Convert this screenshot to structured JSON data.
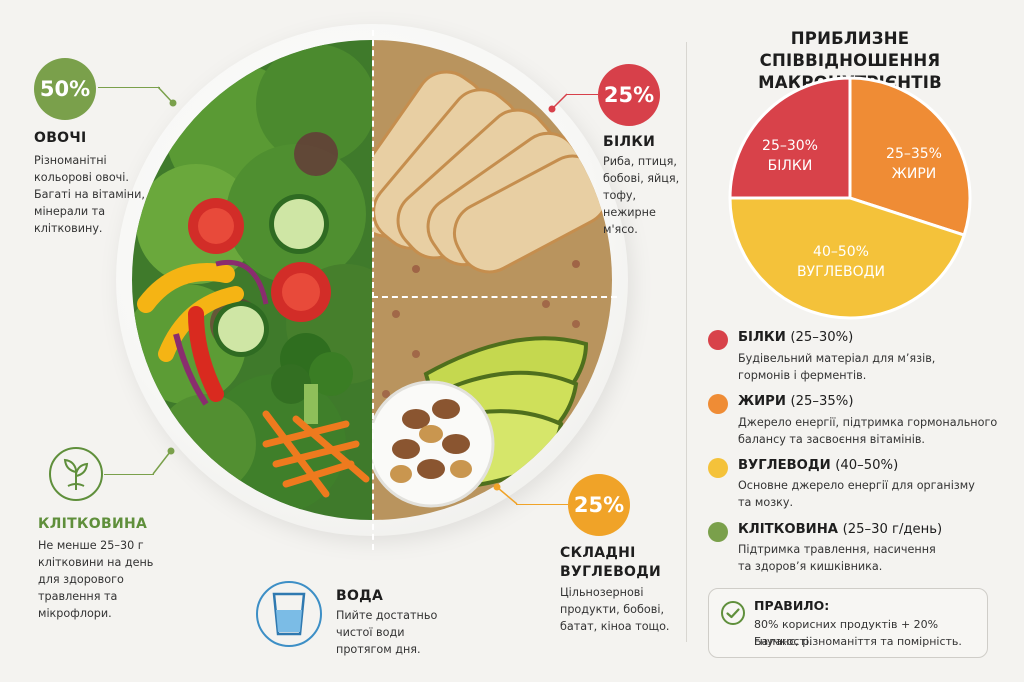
{
  "panel": {
    "title_line1": "ПРИБЛИЗНЕ СПІВВІДНОШЕННЯ",
    "title_line2": "МАКРОНУТРІЄНТІВ"
  },
  "callouts": {
    "vegetables": {
      "percent": "50%",
      "title": "ОВОЧІ",
      "desc": [
        "Різноманітні",
        "кольорові овочі.",
        "Багаті на вітаміни,",
        "мінерали та",
        "клітковину."
      ],
      "color": "#7aa04b"
    },
    "protein": {
      "percent": "25%",
      "title": "БІЛКИ",
      "desc": [
        "Риба, птиця,",
        "бобові, яйця,",
        "тофу, нежирне",
        "м'ясо."
      ],
      "color": "#d7404a"
    },
    "carbs": {
      "percent": "25%",
      "title_line1": "СКЛАДНІ",
      "title_line2": "ВУГЛЕВОДИ",
      "desc": [
        "Цільнозернові",
        "продукти, бобові,",
        "батат, кіноа тощо."
      ],
      "color": "#f0a328"
    },
    "fiber": {
      "title": "КЛІТКОВИНА",
      "desc": [
        "Не менше 25–30 г",
        "клітковини на день",
        "для здорового",
        "травлення та",
        "мікрофлори."
      ],
      "icon": "leaf-icon",
      "color": "#5f8f3b"
    },
    "water": {
      "title": "ВОДА",
      "desc": [
        "Пийте достатньо",
        "чистої води",
        "протягом дня."
      ],
      "icon": "water-glass-icon",
      "color": "#3d8fc6"
    }
  },
  "chart_data": {
    "type": "pie",
    "title": "ПРИБЛИЗНЕ СПІВВІДНОШЕННЯ МАКРОНУТРІЄНТІВ",
    "slices": [
      {
        "label": "БІЛКИ",
        "range": "25–30%",
        "value": 25,
        "color": "#d8424a"
      },
      {
        "label": "ЖИРИ",
        "range": "25–35%",
        "value": 30,
        "color": "#ef8c35"
      },
      {
        "label": "ВУГЛЕВОДИ",
        "range": "40–50%",
        "value": 45,
        "color": "#f4c23a"
      }
    ]
  },
  "legend": [
    {
      "title": "БІЛКИ",
      "range": "(25–30%)",
      "desc": [
        "Будівельний матеріал для м’язів,",
        "гормонів і ферментів."
      ],
      "color": "#d8424a"
    },
    {
      "title": "ЖИРИ",
      "range": "(25–35%)",
      "desc": [
        "Джерело енергії, підтримка гормонального",
        "балансу та засвоєння вітамінів."
      ],
      "color": "#ef8c35"
    },
    {
      "title": "ВУГЛЕВОДИ",
      "range": "(40–50%)",
      "desc": [
        "Основне джерело енергії для організму",
        "та мозку."
      ],
      "color": "#f4c23a"
    },
    {
      "title": "КЛІТКОВИНА",
      "range": "(25–30 г/день)",
      "desc": [
        "Підтримка травлення, насичення",
        "та здоров’я кишківника."
      ],
      "color": "#7aa04b"
    }
  ],
  "rule": {
    "title": "ПРАВИЛО:",
    "line1": "80% корисних продуктів + 20% гнучкості.",
    "line2": "Баланс, різноманіття та помірність.",
    "icon": "check-circle-icon"
  }
}
